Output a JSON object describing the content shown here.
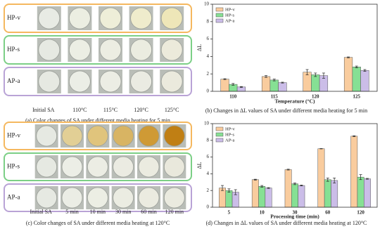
{
  "photo_panels": [
    {
      "row_labels": [
        "HP-v",
        "HP-s",
        "AP-a"
      ],
      "column_labels": [
        "Initial SA",
        "110°C",
        "115°C",
        "120°C",
        "125°C"
      ],
      "caption": "(a) Color changes of SA under different media heating for 5 min"
    },
    {
      "row_labels": [
        "HP-v",
        "HP-s",
        "AP-a"
      ],
      "column_labels": [
        "Initial SA",
        "5 min",
        "10 min",
        "30 min",
        "60 min",
        "120 min"
      ],
      "caption": "(c) Color changes of SA under different media heating at 120°C"
    }
  ],
  "chart_data": [
    {
      "type": "bar",
      "caption": "(b) Changes in ΔL values of SA under different media heating for 5 min",
      "x_label": "Temperature (°C)",
      "y_label": "ΔL",
      "categories": [
        "110",
        "115",
        "120",
        "125"
      ],
      "series": [
        {
          "name": "HP-v",
          "color": "#f9cc9e",
          "values": [
            1.4,
            1.7,
            2.2,
            3.9
          ],
          "errors": [
            0.05,
            0.1,
            0.3,
            0.05
          ]
        },
        {
          "name": "HP-s",
          "color": "#86e094",
          "values": [
            0.8,
            1.3,
            1.9,
            2.8
          ],
          "errors": [
            0.1,
            0.1,
            0.2,
            0.1
          ]
        },
        {
          "name": "AP-a",
          "color": "#cbbde8",
          "values": [
            0.5,
            1.0,
            1.8,
            2.4
          ],
          "errors": [
            0.05,
            0.05,
            0.3,
            0.1
          ]
        }
      ],
      "ylim": [
        0,
        10
      ],
      "yticks": [
        0,
        2,
        4,
        6,
        8,
        10
      ],
      "legend": "upper left"
    },
    {
      "type": "bar",
      "caption": "(d) Changes in ΔL values of SA under different media heating at 120°C",
      "x_label": "Processing time (min)",
      "y_label": "ΔL",
      "categories": [
        "5",
        "10",
        "30",
        "60",
        "120"
      ],
      "series": [
        {
          "name": "HP-v",
          "color": "#f9cc9e",
          "values": [
            2.3,
            3.3,
            4.5,
            7.0,
            8.5
          ],
          "errors": [
            0.3,
            0.05,
            0.05,
            0.02,
            0.05
          ]
        },
        {
          "name": "HP-s",
          "color": "#86e094",
          "values": [
            2.0,
            2.5,
            2.8,
            3.3,
            3.6
          ],
          "errors": [
            0.2,
            0.1,
            0.1,
            0.2,
            0.3
          ]
        },
        {
          "name": "AP-a",
          "color": "#cbbde8",
          "values": [
            1.8,
            2.3,
            2.6,
            3.2,
            3.4
          ],
          "errors": [
            0.3,
            0.05,
            0.05,
            0.3,
            0.05
          ]
        }
      ],
      "ylim": [
        0,
        10
      ],
      "yticks": [
        0,
        2,
        4,
        6,
        8,
        10
      ],
      "legend": "upper left"
    }
  ]
}
